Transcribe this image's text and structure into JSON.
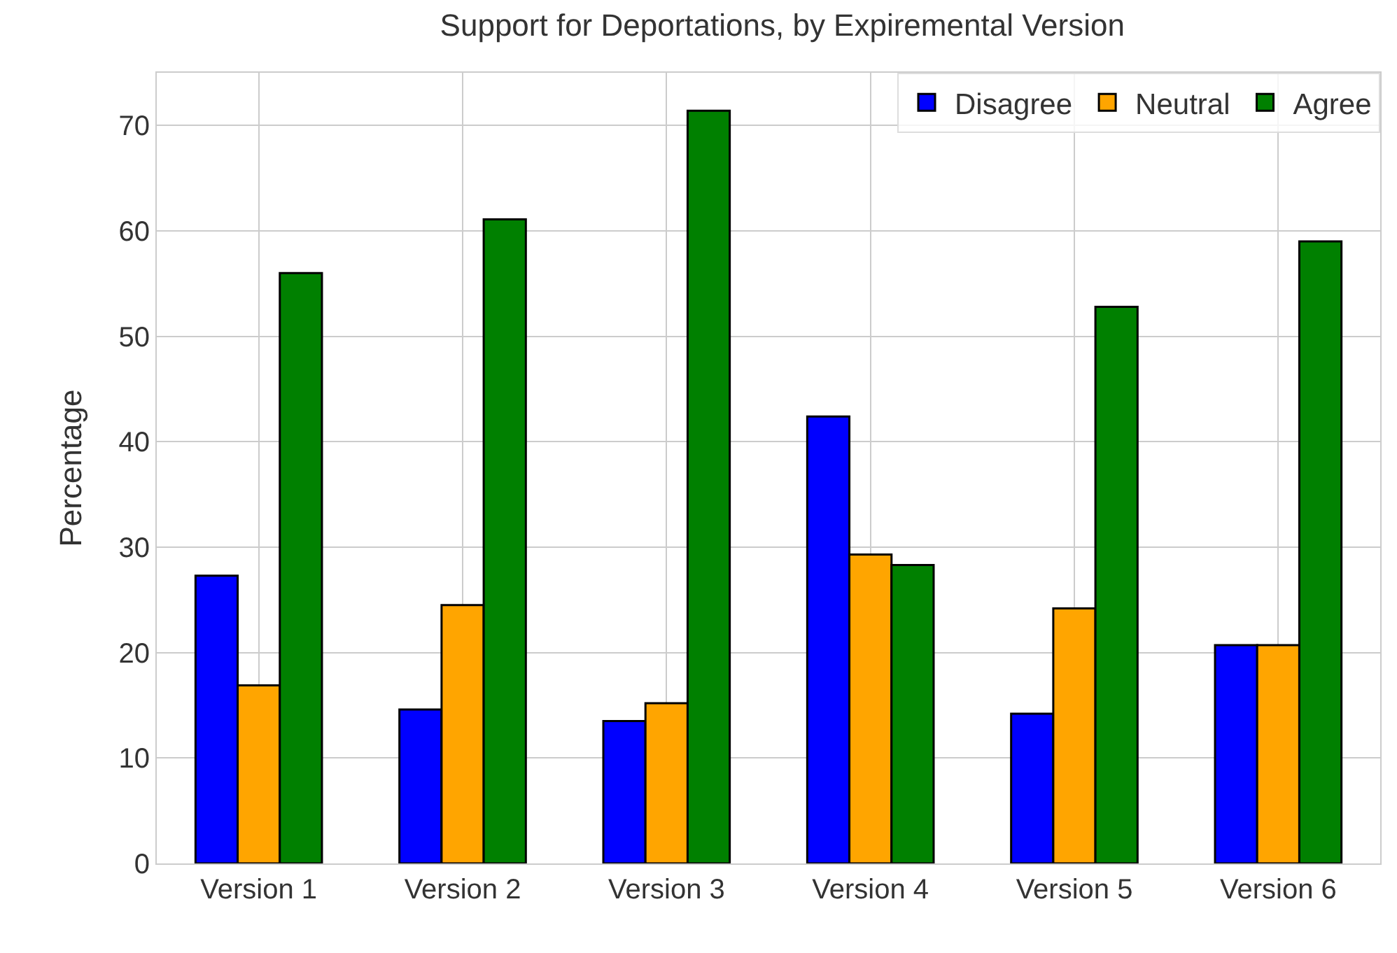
{
  "chart_data": {
    "type": "bar",
    "title": "Support for Deportations, by Expiremental Version",
    "ylabel": "Percentage",
    "categories": [
      "Version 1",
      "Version 2",
      "Version 3",
      "Version 4",
      "Version 5",
      "Version 6"
    ],
    "series": [
      {
        "name": "Disagree",
        "color": "#0000ff",
        "values": [
          27.3,
          14.6,
          13.5,
          42.4,
          14.2,
          20.7
        ]
      },
      {
        "name": "Neutral",
        "color": "#ffa500",
        "values": [
          16.9,
          24.5,
          15.2,
          29.3,
          24.2,
          20.7
        ]
      },
      {
        "name": "Agree",
        "color": "#008000",
        "values": [
          56.0,
          61.1,
          71.4,
          28.3,
          52.8,
          59.0
        ]
      }
    ],
    "ylim": [
      0,
      75
    ],
    "yticks": [
      0,
      10,
      20,
      30,
      40,
      50,
      60,
      70
    ],
    "grid": true,
    "legend": "top right"
  }
}
